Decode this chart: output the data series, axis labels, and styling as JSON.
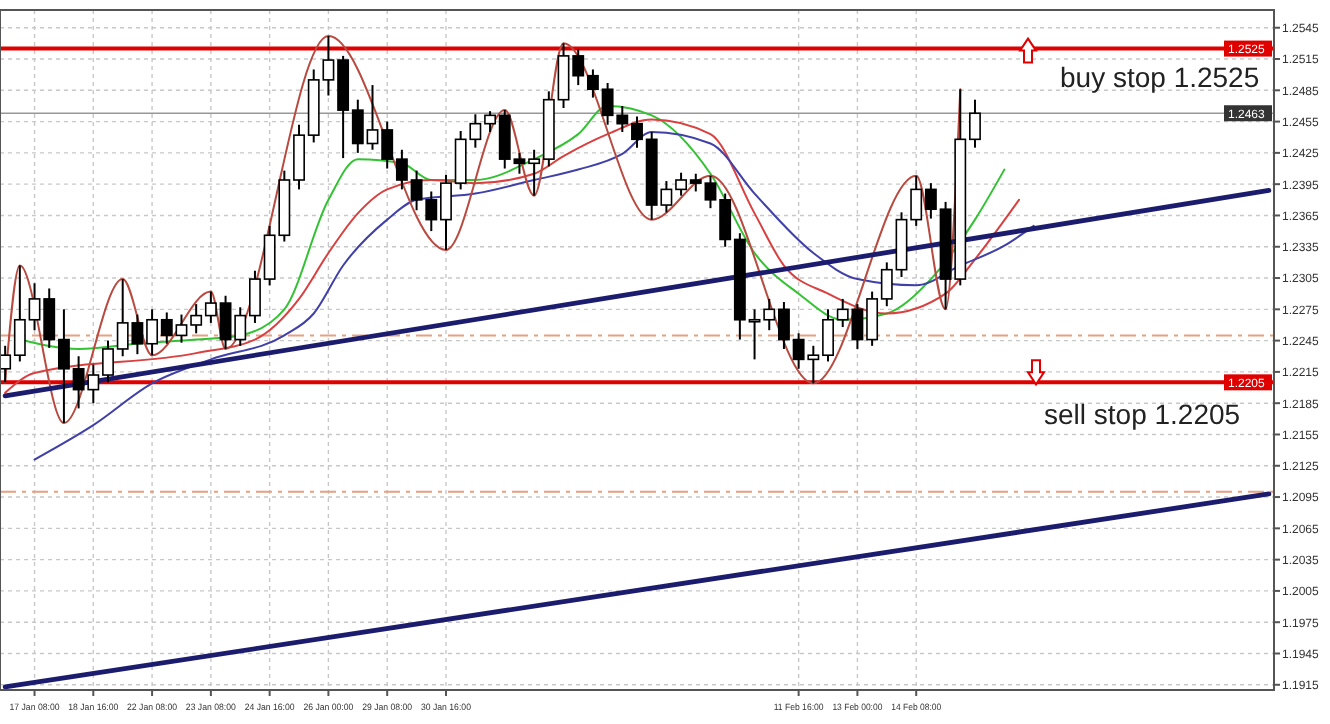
{
  "chart_data": {
    "type": "candlestick",
    "categories": [
      null,
      null,
      "17 Jan 08:00",
      null,
      null,
      null,
      "18 Jan 16:00",
      null,
      null,
      null,
      "22 Jan 08:00",
      null,
      null,
      null,
      "23 Jan 08:00",
      null,
      null,
      null,
      "24 Jan 16:00",
      null,
      null,
      null,
      "26 Jan 00:00",
      null,
      null,
      null,
      "29 Jan 08:00",
      null,
      null,
      null,
      "30 Jan 16:00",
      null,
      null,
      null,
      null,
      null,
      null,
      null,
      null,
      null,
      null,
      null,
      null,
      null,
      null,
      null,
      null,
      null,
      null,
      null,
      null,
      null,
      null,
      null,
      "11 Feb 16:00",
      null,
      null,
      null,
      "13 Feb 00:00",
      null,
      null,
      null,
      "14 Feb 08:00",
      null,
      null,
      null,
      null,
      null,
      null,
      null,
      null,
      null,
      null,
      null,
      null,
      null,
      null,
      null,
      null,
      null,
      null,
      null,
      null,
      null,
      null,
      null,
      null
    ],
    "ohlc": [
      [
        1.2218,
        1.224,
        1.2205,
        1.2231
      ],
      [
        1.2231,
        1.2317,
        1.2225,
        1.2265
      ],
      [
        1.2265,
        1.23,
        1.2255,
        1.2285
      ],
      [
        1.2285,
        1.2295,
        1.2238,
        1.2246
      ],
      [
        1.2246,
        1.2275,
        1.2166,
        1.2218
      ],
      [
        1.2218,
        1.223,
        1.218,
        1.2198
      ],
      [
        1.2198,
        1.2222,
        1.2185,
        1.2212
      ],
      [
        1.2212,
        1.2245,
        1.2205,
        1.2237
      ],
      [
        1.2237,
        1.2304,
        1.223,
        1.2262
      ],
      [
        1.2262,
        1.227,
        1.2232,
        1.2242
      ],
      [
        1.2242,
        1.2275,
        1.2231,
        1.2265
      ],
      [
        1.2265,
        1.2272,
        1.2242,
        1.225
      ],
      [
        1.225,
        1.227,
        1.2243,
        1.226
      ],
      [
        1.226,
        1.228,
        1.2252,
        1.2269
      ],
      [
        1.2269,
        1.2292,
        1.2262,
        1.2281
      ],
      [
        1.2281,
        1.2288,
        1.2237,
        1.2246
      ],
      [
        1.2246,
        1.2277,
        1.224,
        1.2269
      ],
      [
        1.2269,
        1.2312,
        1.2262,
        1.2304
      ],
      [
        1.2304,
        1.2355,
        1.2298,
        1.2346
      ],
      [
        1.2346,
        1.2408,
        1.234,
        1.2399
      ],
      [
        1.2399,
        1.2452,
        1.239,
        1.2442
      ],
      [
        1.2442,
        1.2505,
        1.2435,
        1.2495
      ],
      [
        1.2495,
        1.2537,
        1.248,
        1.2514
      ],
      [
        1.2514,
        1.2518,
        1.242,
        1.2466
      ],
      [
        1.2466,
        1.2476,
        1.2425,
        1.2434
      ],
      [
        1.2434,
        1.249,
        1.2428,
        1.2447
      ],
      [
        1.2447,
        1.2455,
        1.241,
        1.2419
      ],
      [
        1.2419,
        1.2428,
        1.239,
        1.2399
      ],
      [
        1.2399,
        1.2408,
        1.237,
        1.238
      ],
      [
        1.238,
        1.2388,
        1.235,
        1.2361
      ],
      [
        1.2361,
        1.2404,
        1.2332,
        1.2396
      ],
      [
        1.2396,
        1.2446,
        1.239,
        1.2438
      ],
      [
        1.2438,
        1.2462,
        1.243,
        1.2453
      ],
      [
        1.2453,
        1.2465,
        1.2445,
        1.2461
      ],
      [
        1.2461,
        1.2466,
        1.241,
        1.2419
      ],
      [
        1.2419,
        1.2425,
        1.2405,
        1.2415
      ],
      [
        1.2415,
        1.2428,
        1.2384,
        1.2419
      ],
      [
        1.2419,
        1.2484,
        1.2412,
        1.2476
      ],
      [
        1.2476,
        1.253,
        1.2468,
        1.2518
      ],
      [
        1.2518,
        1.2524,
        1.249,
        1.2499
      ],
      [
        1.2499,
        1.2505,
        1.2478,
        1.2486
      ],
      [
        1.2486,
        1.2492,
        1.2452,
        1.2461
      ],
      [
        1.2461,
        1.247,
        1.2445,
        1.2453
      ],
      [
        1.2453,
        1.246,
        1.243,
        1.2438
      ],
      [
        1.2438,
        1.2445,
        1.2361,
        1.2375
      ],
      [
        1.2375,
        1.2398,
        1.2368,
        1.239
      ],
      [
        1.239,
        1.2406,
        1.2384,
        1.2399
      ],
      [
        1.2399,
        1.2405,
        1.2388,
        1.2396
      ],
      [
        1.2396,
        1.2403,
        1.2372,
        1.238
      ],
      [
        1.238,
        1.2386,
        1.2335,
        1.2342
      ],
      [
        1.2342,
        1.2348,
        1.2246,
        1.2265
      ],
      [
        1.2265,
        1.2275,
        1.2227,
        1.2265
      ],
      [
        1.2265,
        1.2285,
        1.2255,
        1.2275
      ],
      [
        1.2275,
        1.2282,
        1.2237,
        1.2246
      ],
      [
        1.2246,
        1.2252,
        1.2218,
        1.2227
      ],
      [
        1.2227,
        1.224,
        1.2204,
        1.2231
      ],
      [
        1.2231,
        1.2275,
        1.2225,
        1.2265
      ],
      [
        1.2265,
        1.2285,
        1.2258,
        1.2275
      ],
      [
        1.2275,
        1.228,
        1.2237,
        1.2246
      ],
      [
        1.2246,
        1.2292,
        1.224,
        1.2285
      ],
      [
        1.2285,
        1.232,
        1.2278,
        1.2313
      ],
      [
        1.2313,
        1.2368,
        1.2306,
        1.2361
      ],
      [
        1.2361,
        1.2403,
        1.2355,
        1.239
      ],
      [
        1.239,
        1.2396,
        1.2362,
        1.2371
      ],
      [
        1.2371,
        1.2378,
        1.2275,
        1.2304
      ],
      [
        1.2304,
        1.2486,
        1.2298,
        1.2438
      ],
      [
        1.2438,
        1.2476,
        1.243,
        1.2463
      ],
      null,
      null,
      null,
      null,
      null,
      null,
      null,
      null,
      null,
      null,
      null,
      null,
      null,
      null,
      null,
      null,
      null,
      null,
      null,
      null
    ],
    "series": [
      {
        "type": "line",
        "color": "#33c233",
        "values": [
          null,
          1.2246,
          null,
          null,
          null,
          1.2237,
          null,
          null,
          null,
          1.2242,
          null,
          null,
          null,
          1.2246,
          null,
          null,
          1.225,
          null,
          null,
          1.2275,
          null,
          null,
          1.238,
          null,
          1.2419,
          null,
          null,
          1.2415,
          null,
          1.2399,
          null,
          null,
          1.2399,
          null,
          null,
          null,
          1.2419,
          null,
          null,
          1.2443,
          null,
          1.247,
          null,
          null,
          1.2461,
          null,
          null,
          null,
          1.2405,
          null,
          null,
          1.2329,
          null,
          null,
          1.229,
          null,
          null,
          1.2265,
          null,
          null,
          1.2271,
          null,
          null,
          1.2304,
          null,
          null,
          1.2361,
          null,
          1.2409,
          null,
          null,
          null,
          null,
          null,
          null,
          null,
          null,
          null,
          null,
          null,
          null,
          null,
          null,
          null,
          null,
          null,
          null
        ]
      },
      {
        "type": "line",
        "color": "#d94040",
        "values": [
          1.2195,
          null,
          1.2214,
          null,
          null,
          null,
          null,
          null,
          null,
          null,
          null,
          null,
          null,
          1.2233,
          null,
          null,
          null,
          1.2246,
          null,
          null,
          1.2285,
          null,
          1.2329,
          null,
          1.2367,
          null,
          1.239,
          null,
          null,
          1.2399,
          null,
          null,
          1.2396,
          null,
          null,
          null,
          1.2405,
          null,
          1.2422,
          null,
          null,
          1.2443,
          null,
          null,
          1.2457,
          null,
          null,
          null,
          1.2443,
          null,
          null,
          1.2367,
          null,
          1.2317,
          null,
          null,
          1.229,
          null,
          null,
          null,
          1.2271,
          null,
          null,
          null,
          1.229,
          null,
          1.2323,
          null,
          null,
          1.238,
          null,
          null,
          null,
          null,
          null,
          null,
          null,
          null,
          null,
          null,
          null,
          null,
          null,
          null,
          null,
          null,
          null
        ]
      },
      {
        "type": "line",
        "color": "#4040a8",
        "values": [
          null,
          null,
          1.2131,
          null,
          null,
          null,
          1.2164,
          null,
          null,
          null,
          1.2204,
          null,
          null,
          null,
          1.2227,
          null,
          null,
          null,
          null,
          1.225,
          null,
          1.2271,
          null,
          1.2317,
          null,
          null,
          1.2361,
          null,
          1.238,
          null,
          null,
          null,
          1.2386,
          null,
          null,
          null,
          1.2399,
          null,
          null,
          1.2409,
          null,
          null,
          1.2424,
          null,
          1.2445,
          null,
          null,
          null,
          1.2434,
          null,
          null,
          1.2386,
          null,
          null,
          null,
          1.2329,
          null,
          null,
          1.2304,
          null,
          null,
          null,
          1.2298,
          null,
          null,
          1.2317,
          null,
          null,
          1.2336,
          null,
          1.2355,
          null,
          null,
          null,
          null,
          null,
          null,
          null,
          null,
          null,
          null,
          null,
          null,
          null,
          null,
          null,
          null
        ]
      },
      {
        "type": "line",
        "color": "#b84a40",
        "values": [
          1.2205,
          1.2317,
          null,
          null,
          1.2166,
          null,
          null,
          null,
          1.2304,
          null,
          1.2231,
          null,
          null,
          null,
          1.2292,
          1.2237,
          null,
          null,
          null,
          null,
          null,
          null,
          1.2537,
          null,
          null,
          null,
          null,
          null,
          null,
          null,
          1.2332,
          null,
          null,
          null,
          1.2466,
          null,
          1.2384,
          null,
          1.253,
          null,
          null,
          null,
          null,
          null,
          1.2361,
          null,
          null,
          null,
          1.2403,
          null,
          null,
          null,
          null,
          null,
          null,
          1.2204,
          null,
          null,
          null,
          null,
          null,
          null,
          1.2403,
          null,
          1.2275,
          1.2486,
          null,
          null,
          null,
          null,
          null,
          null,
          null,
          null,
          null,
          null,
          null,
          null,
          null,
          null,
          null,
          null,
          null,
          null,
          null,
          null,
          null
        ]
      },
      {
        "type": "line",
        "color": "#1c1c6e",
        "values": [
          1.2192,
          null,
          null,
          null,
          null,
          null,
          null,
          null,
          null,
          null,
          null,
          null,
          null,
          null,
          null,
          null,
          null,
          null,
          null,
          null,
          null,
          null,
          null,
          null,
          null,
          null,
          null,
          null,
          null,
          null,
          null,
          null,
          null,
          null,
          null,
          null,
          null,
          null,
          null,
          null,
          null,
          null,
          null,
          null,
          null,
          null,
          null,
          null,
          null,
          null,
          null,
          null,
          null,
          null,
          null,
          null,
          null,
          null,
          null,
          null,
          null,
          null,
          null,
          null,
          null,
          null,
          null,
          null,
          null,
          null,
          null,
          null,
          null,
          null,
          null,
          null,
          null,
          null,
          null,
          null,
          null,
          null,
          null,
          null,
          null,
          null,
          1.2389
        ]
      },
      {
        "type": "line",
        "color": "#1c1c6e",
        "values": [
          1.1913,
          null,
          null,
          null,
          null,
          null,
          null,
          null,
          null,
          null,
          null,
          null,
          null,
          null,
          null,
          null,
          null,
          null,
          null,
          null,
          null,
          null,
          null,
          null,
          null,
          null,
          null,
          null,
          null,
          null,
          null,
          null,
          null,
          null,
          null,
          null,
          null,
          null,
          null,
          null,
          null,
          null,
          null,
          null,
          null,
          null,
          null,
          null,
          null,
          null,
          null,
          null,
          null,
          null,
          null,
          null,
          null,
          null,
          null,
          null,
          null,
          null,
          null,
          null,
          null,
          null,
          null,
          null,
          null,
          null,
          null,
          null,
          null,
          null,
          null,
          null,
          null,
          null,
          null,
          null,
          null,
          null,
          null,
          null,
          null,
          null,
          1.2098
        ]
      }
    ],
    "ylim": [
      1.191,
      1.2562
    ],
    "yticks": [
      1.2545,
      1.2515,
      1.2485,
      1.2455,
      1.2425,
      1.2395,
      1.2365,
      1.2335,
      1.2305,
      1.2275,
      1.2245,
      1.2215,
      1.2185,
      1.2155,
      1.2125,
      1.2095,
      1.2065,
      1.2035,
      1.2005,
      1.1975,
      1.1945,
      1.1915
    ],
    "grid": true,
    "ref_lines": [
      {
        "axis": "y",
        "value": 1.2525,
        "label": "1.2525",
        "color": "#e00000"
      },
      {
        "axis": "y",
        "value": 1.2205,
        "label": "1.2205",
        "color": "#e00000"
      },
      {
        "axis": "y",
        "value": 1.2463,
        "label": "1.2463",
        "color": "#333333"
      },
      {
        "axis": "y",
        "value": 1.225,
        "color": "#e8a080",
        "line_style": "dashed"
      },
      {
        "axis": "y",
        "value": 1.21,
        "color": "#e8a080",
        "line_style": "dashed"
      }
    ],
    "annotations": [
      {
        "text": "buy stop 1.2525",
        "y": 1.2525
      },
      {
        "text": "sell stop 1.2205",
        "y": 1.2205
      }
    ]
  }
}
